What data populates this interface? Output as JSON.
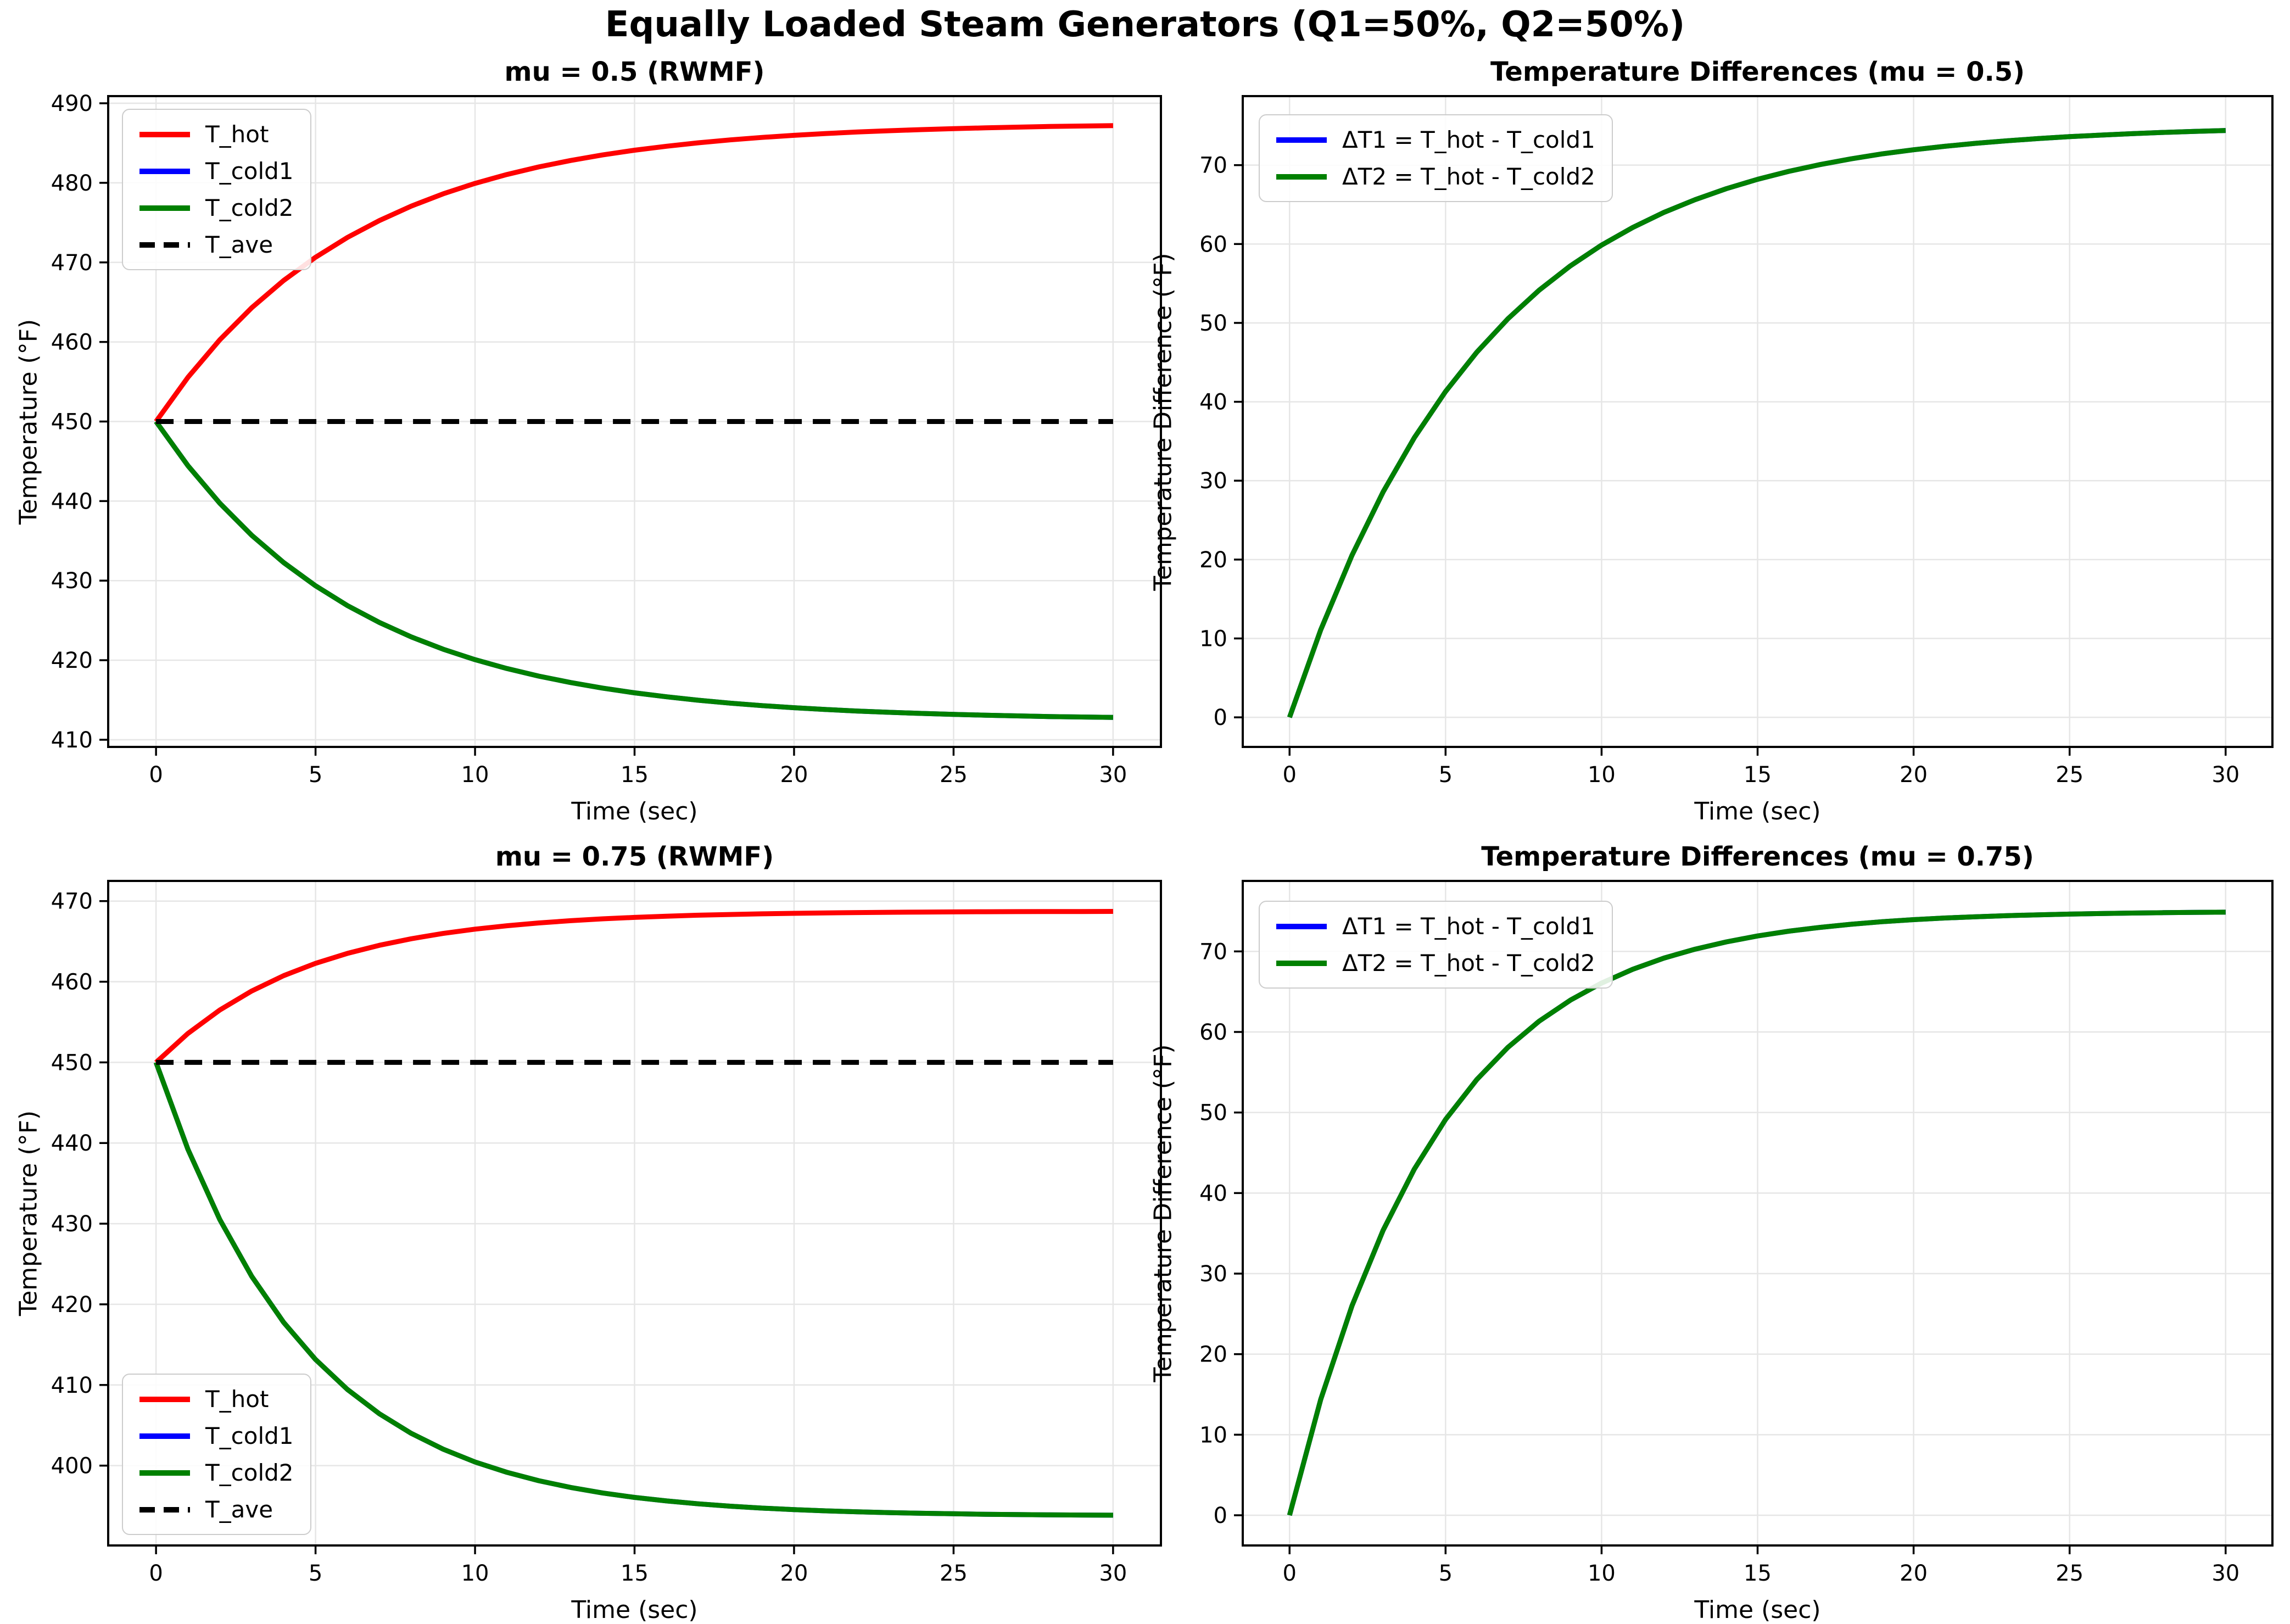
{
  "suptitle": "Equally Loaded Steam Generators (Q1=50%, Q2=50%)",
  "colors": {
    "t_hot": "#ff0000",
    "t_cold1": "#0000ff",
    "t_cold2": "#008000",
    "t_ave": "#000000",
    "grid": "#e6e6e6",
    "spine": "#000000",
    "legend_border": "#cccccc"
  },
  "chart_data": [
    {
      "type": "line",
      "title": "mu = 0.5 (RWMF)",
      "xlabel": "Time (sec)",
      "ylabel": "Temperature (°F)",
      "xlim": [
        -1.5,
        31.5
      ],
      "ylim": [
        409.1,
        490.9
      ],
      "xticks": [
        0,
        5,
        10,
        15,
        20,
        25,
        30
      ],
      "yticks": [
        410,
        420,
        430,
        440,
        450,
        460,
        470,
        480,
        490
      ],
      "grid": true,
      "legend_position": "upper left",
      "x": [
        0,
        1,
        2,
        3,
        4,
        5,
        6,
        7,
        8,
        9,
        10,
        11,
        12,
        13,
        14,
        15,
        16,
        17,
        18,
        19,
        20,
        21,
        22,
        23,
        24,
        25,
        26,
        27,
        28,
        29,
        30
      ],
      "series": [
        {
          "name": "T_hot",
          "color": "#ff0000",
          "style": "solid",
          "values": [
            450,
            455.55,
            460.27,
            464.3,
            467.73,
            470.65,
            473.14,
            475.26,
            477.07,
            478.62,
            479.93,
            481.05,
            482,
            482.81,
            483.51,
            484.1,
            484.6,
            485.03,
            485.4,
            485.71,
            485.97,
            486.2,
            486.39,
            486.55,
            486.69,
            486.81,
            486.91,
            487,
            487.08,
            487.14,
            487.19
          ]
        },
        {
          "name": "T_cold1",
          "color": "#0000ff",
          "style": "solid",
          "values": [
            450,
            444.45,
            439.73,
            435.7,
            432.27,
            429.35,
            426.86,
            424.74,
            422.93,
            421.38,
            420.07,
            418.95,
            418,
            417.19,
            416.49,
            415.9,
            415.4,
            414.97,
            414.6,
            414.29,
            414.03,
            413.8,
            413.61,
            413.45,
            413.31,
            413.19,
            413.09,
            413,
            412.92,
            412.86,
            412.81
          ]
        },
        {
          "name": "T_cold2",
          "color": "#008000",
          "style": "solid",
          "values": [
            450,
            444.45,
            439.73,
            435.7,
            432.27,
            429.35,
            426.86,
            424.74,
            422.93,
            421.38,
            420.07,
            418.95,
            418,
            417.19,
            416.49,
            415.9,
            415.4,
            414.97,
            414.6,
            414.29,
            414.03,
            413.8,
            413.61,
            413.45,
            413.31,
            413.19,
            413.09,
            413,
            412.92,
            412.86,
            412.81
          ]
        },
        {
          "name": "T_ave",
          "color": "#000000",
          "style": "dashed",
          "values": [
            450,
            450,
            450,
            450,
            450,
            450,
            450,
            450,
            450,
            450,
            450,
            450,
            450,
            450,
            450,
            450,
            450,
            450,
            450,
            450,
            450,
            450,
            450,
            450,
            450,
            450,
            450,
            450,
            450,
            450,
            450
          ]
        }
      ]
    },
    {
      "type": "line",
      "title": "Temperature Differences (mu = 0.5)",
      "xlabel": "Time (sec)",
      "ylabel": "Temperature Difference (°F)",
      "xlim": [
        -1.5,
        31.5
      ],
      "ylim": [
        -3.75,
        78.75
      ],
      "xticks": [
        0,
        5,
        10,
        15,
        20,
        25,
        30
      ],
      "yticks": [
        0,
        10,
        20,
        30,
        40,
        50,
        60,
        70
      ],
      "grid": true,
      "legend_position": "upper left",
      "x": [
        0,
        1,
        2,
        3,
        4,
        5,
        6,
        7,
        8,
        9,
        10,
        11,
        12,
        13,
        14,
        15,
        16,
        17,
        18,
        19,
        20,
        21,
        22,
        23,
        24,
        25,
        26,
        27,
        28,
        29,
        30
      ],
      "series": [
        {
          "name": "ΔT1 = T_hot - T_cold1",
          "color": "#0000ff",
          "style": "solid",
          "values": [
            0,
            11.09,
            20.54,
            28.59,
            35.45,
            41.3,
            46.28,
            50.53,
            54.15,
            57.23,
            59.86,
            62.1,
            64.01,
            65.63,
            67.02,
            68.2,
            69.21,
            70.07,
            70.8,
            71.43,
            71.95,
            72.39,
            72.77,
            73.09,
            73.37,
            73.61,
            73.81,
            73.99,
            74.15,
            74.28,
            74.39
          ]
        },
        {
          "name": "ΔT2 = T_hot - T_cold2",
          "color": "#008000",
          "style": "solid",
          "values": [
            0,
            11.09,
            20.54,
            28.59,
            35.45,
            41.3,
            46.28,
            50.53,
            54.15,
            57.23,
            59.86,
            62.1,
            64.01,
            65.63,
            67.02,
            68.2,
            69.21,
            70.07,
            70.8,
            71.43,
            71.95,
            72.39,
            72.77,
            73.09,
            73.37,
            73.61,
            73.81,
            73.99,
            74.15,
            74.28,
            74.39
          ]
        }
      ]
    },
    {
      "type": "line",
      "title": "mu = 0.75 (RWMF)",
      "xlabel": "Time (sec)",
      "ylabel": "Temperature (°F)",
      "xlim": [
        -1.5,
        31.5
      ],
      "ylim": [
        390.1,
        472.5
      ],
      "xticks": [
        0,
        5,
        10,
        15,
        20,
        25,
        30
      ],
      "yticks": [
        400,
        410,
        420,
        430,
        440,
        450,
        460,
        470
      ],
      "grid": true,
      "legend_position": "lower left",
      "x": [
        0,
        1,
        2,
        3,
        4,
        5,
        6,
        7,
        8,
        9,
        10,
        11,
        12,
        13,
        14,
        15,
        16,
        17,
        18,
        19,
        20,
        21,
        22,
        23,
        24,
        25,
        26,
        27,
        28,
        29,
        30
      ],
      "series": [
        {
          "name": "T_hot",
          "color": "#ff0000",
          "style": "solid",
          "values": [
            450,
            453.59,
            456.5,
            458.85,
            460.75,
            462.28,
            463.52,
            464.52,
            465.33,
            465.99,
            466.52,
            466.94,
            467.29,
            467.57,
            467.8,
            467.98,
            468.13,
            468.25,
            468.34,
            468.42,
            468.48,
            468.54,
            468.58,
            468.61,
            468.64,
            468.66,
            468.68,
            468.69,
            468.7,
            468.71,
            468.72
          ]
        },
        {
          "name": "T_cold1",
          "color": "#0000ff",
          "style": "solid",
          "values": [
            450,
            439.22,
            430.5,
            423.46,
            417.76,
            413.16,
            409.44,
            406.43,
            404,
            402.04,
            400.45,
            399.17,
            398.13,
            397.29,
            396.61,
            396.06,
            395.62,
            395.26,
            394.97,
            394.73,
            394.55,
            394.39,
            394.27,
            394.17,
            394.09,
            394.03,
            393.97,
            393.93,
            393.89,
            393.87,
            393.85
          ]
        },
        {
          "name": "T_cold2",
          "color": "#008000",
          "style": "solid",
          "values": [
            450,
            439.22,
            430.5,
            423.46,
            417.76,
            413.16,
            409.44,
            406.43,
            404,
            402.04,
            400.45,
            399.17,
            398.13,
            397.29,
            396.61,
            396.06,
            395.62,
            395.26,
            394.97,
            394.73,
            394.55,
            394.39,
            394.27,
            394.17,
            394.09,
            394.03,
            393.97,
            393.93,
            393.89,
            393.87,
            393.85
          ]
        },
        {
          "name": "T_ave",
          "color": "#000000",
          "style": "dashed",
          "values": [
            450,
            450,
            450,
            450,
            450,
            450,
            450,
            450,
            450,
            450,
            450,
            450,
            450,
            450,
            450,
            450,
            450,
            450,
            450,
            450,
            450,
            450,
            450,
            450,
            450,
            450,
            450,
            450,
            450,
            450,
            450
          ]
        }
      ]
    },
    {
      "type": "line",
      "title": "Temperature Differences (mu = 0.75)",
      "xlabel": "Time (sec)",
      "ylabel": "Temperature Difference (°F)",
      "xlim": [
        -1.5,
        31.5
      ],
      "ylim": [
        -3.75,
        78.75
      ],
      "xticks": [
        0,
        5,
        10,
        15,
        20,
        25,
        30
      ],
      "yticks": [
        0,
        10,
        20,
        30,
        40,
        50,
        60,
        70
      ],
      "grid": true,
      "legend_position": "upper left",
      "x": [
        0,
        1,
        2,
        3,
        4,
        5,
        6,
        7,
        8,
        9,
        10,
        11,
        12,
        13,
        14,
        15,
        16,
        17,
        18,
        19,
        20,
        21,
        22,
        23,
        24,
        25,
        26,
        27,
        28,
        29,
        30
      ],
      "series": [
        {
          "name": "ΔT1 = T_hot - T_cold1",
          "color": "#0000ff",
          "style": "solid",
          "values": [
            0,
            14.38,
            26,
            35.39,
            42.98,
            49.13,
            54.08,
            58.1,
            61.34,
            63.95,
            66.07,
            67.78,
            69.17,
            70.28,
            71.18,
            71.92,
            72.51,
            72.98,
            73.37,
            73.69,
            73.94,
            74.15,
            74.3,
            74.44,
            74.54,
            74.63,
            74.7,
            74.76,
            74.81,
            74.84,
            74.87
          ]
        },
        {
          "name": "ΔT2 = T_hot - T_cold2",
          "color": "#008000",
          "style": "solid",
          "values": [
            0,
            14.38,
            26,
            35.39,
            42.98,
            49.13,
            54.08,
            58.1,
            61.34,
            63.95,
            66.07,
            67.78,
            69.17,
            70.28,
            71.18,
            71.92,
            72.51,
            72.98,
            73.37,
            73.69,
            73.94,
            74.15,
            74.3,
            74.44,
            74.54,
            74.63,
            74.7,
            74.76,
            74.81,
            74.84,
            74.87
          ]
        }
      ]
    }
  ]
}
